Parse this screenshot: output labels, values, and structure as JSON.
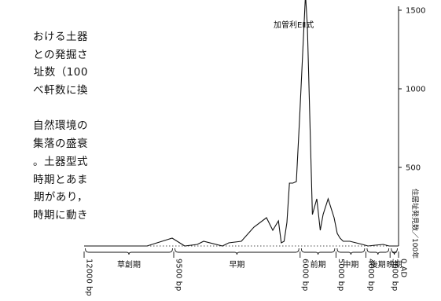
{
  "text_fragments": [
    "おける土器",
    "との発掘さ",
    "址数（100",
    "ベ軒数に換",
    "",
    "自然環境の",
    "集落の盛衰",
    "。土器型式",
    "時期とあま",
    "期があり，",
    "時期に動き"
  ],
  "chart_data": {
    "type": "line",
    "title": "",
    "ylabel": "住居址発見数／100年",
    "xlabel": "",
    "annotation": "加曽利EⅡ式",
    "yticks": [
      500,
      1000,
      1500
    ],
    "ylim": [
      0,
      1700
    ],
    "xlim": [
      0,
      100
    ],
    "series": [
      {
        "x": [
          0,
          20,
          28,
          32,
          36,
          38,
          44,
          46,
          50,
          54,
          58,
          60,
          61.8,
          62.7,
          63.6,
          64.5,
          65.3,
          66.4,
          67.5,
          68.5,
          70.4,
          71,
          72.6,
          74,
          75.1,
          76,
          77.6,
          79.5,
          80.5,
          81.4,
          82.4,
          84.5,
          86.5,
          88.5,
          90.3,
          92.5,
          95.1,
          97,
          100
        ],
        "y": [
          0,
          0,
          50,
          0,
          10,
          30,
          0,
          20,
          30,
          120,
          180,
          100,
          160,
          20,
          30,
          150,
          400,
          400,
          410,
          800,
          1600,
          1400,
          200,
          300,
          100,
          200,
          300,
          180,
          80,
          50,
          30,
          30,
          20,
          10,
          0,
          5,
          10,
          0,
          0
        ]
      }
    ],
    "periods": [
      "草創期",
      "早期",
      "前期",
      "中期",
      "後期",
      "晩期"
    ],
    "period_ranges": [
      [
        0,
        28.5
      ],
      [
        28.5,
        68.7
      ],
      [
        68.7,
        80.1
      ],
      [
        80.1,
        89.6
      ],
      [
        89.6,
        97.3
      ],
      [
        97.3,
        100
      ]
    ],
    "date_labels": [
      "12000 bp",
      "9500 bp",
      "6000 bp",
      "5000 bp",
      "4000 bp",
      "3000 bp",
      "0 AD"
    ],
    "date_positions": [
      0,
      28.5,
      68.7,
      80.1,
      89.6,
      97.3,
      100
    ]
  }
}
